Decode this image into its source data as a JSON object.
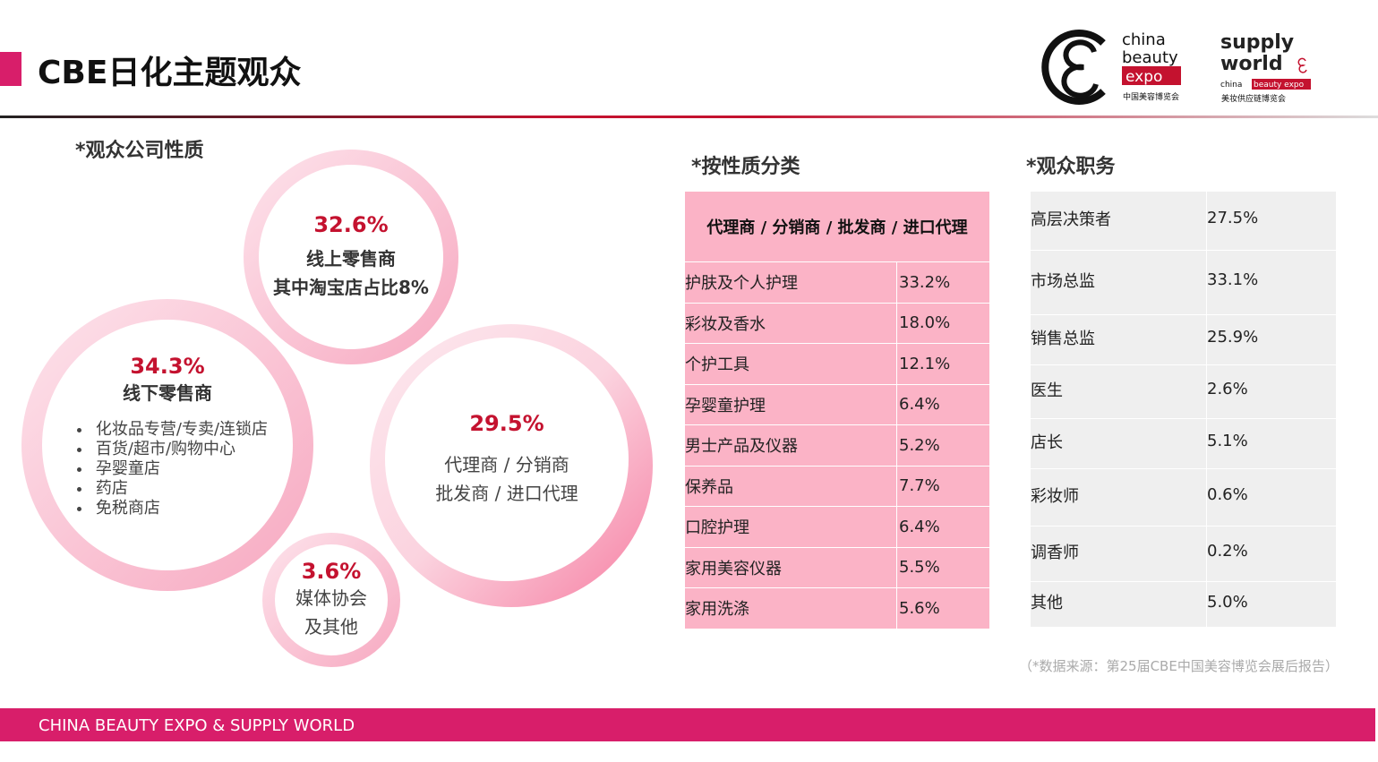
{
  "header": {
    "title": "CBE日化主题观众",
    "logo_text": "china beauty expo 中国美容博览会 supply world china beauty expo 美妆供应链博览会"
  },
  "left": {
    "heading": "*观众公司性质",
    "online": {
      "pct": "32.6%",
      "line1": "线上零售商",
      "line2": "其中淘宝店占比8%"
    },
    "offline": {
      "pct": "34.3%",
      "label": "线下零售商",
      "items": [
        "化妆品专营/专卖/连锁店",
        "百货/超市/购物中心",
        "孕婴童店",
        "药店",
        "免税商店"
      ]
    },
    "agent": {
      "pct": "29.5%",
      "line1": "代理商 / 分销商",
      "line2": "批发商 / 进口代理"
    },
    "media": {
      "pct": "3.6%",
      "line1": "媒体协会",
      "line2": "及其他"
    }
  },
  "category": {
    "heading": "*按性质分类",
    "table_header": "代理商 / 分销商 / 批发商 / 进口代理",
    "rows": [
      [
        "护肤及个人护理",
        "33.2%"
      ],
      [
        "彩妆及香水",
        "18.0%"
      ],
      [
        "个护工具",
        "12.1%"
      ],
      [
        "孕婴童护理",
        "6.4%"
      ],
      [
        "男士产品及仪器",
        "5.2%"
      ],
      [
        "保养品",
        "7.7%"
      ],
      [
        "口腔护理",
        "6.4%"
      ],
      [
        "家用美容仪器",
        "5.5%"
      ],
      [
        "家用洗涤",
        "5.6%"
      ]
    ]
  },
  "position": {
    "heading": "*观众职务",
    "rows": [
      [
        "高层决策者",
        "27.5%"
      ],
      [
        "市场总监",
        "33.1%"
      ],
      [
        "销售总监",
        "25.9%"
      ],
      [
        "医生",
        "2.6%"
      ],
      [
        "店长",
        "5.1%"
      ],
      [
        "彩妆师",
        "0.6%"
      ],
      [
        "调香师",
        "0.2%"
      ],
      [
        "其他",
        "5.0%"
      ]
    ]
  },
  "source": "（*数据来源：第25届CBE中国美容博览会展后报告）",
  "footer": "CHINA BEAUTY EXPO & SUPPLY  WORLD",
  "colors": {
    "brand": "#d81e6a",
    "accent_red": "#c4122f",
    "table_pink": "#fbb3c6",
    "table_gray": "#efefef"
  }
}
